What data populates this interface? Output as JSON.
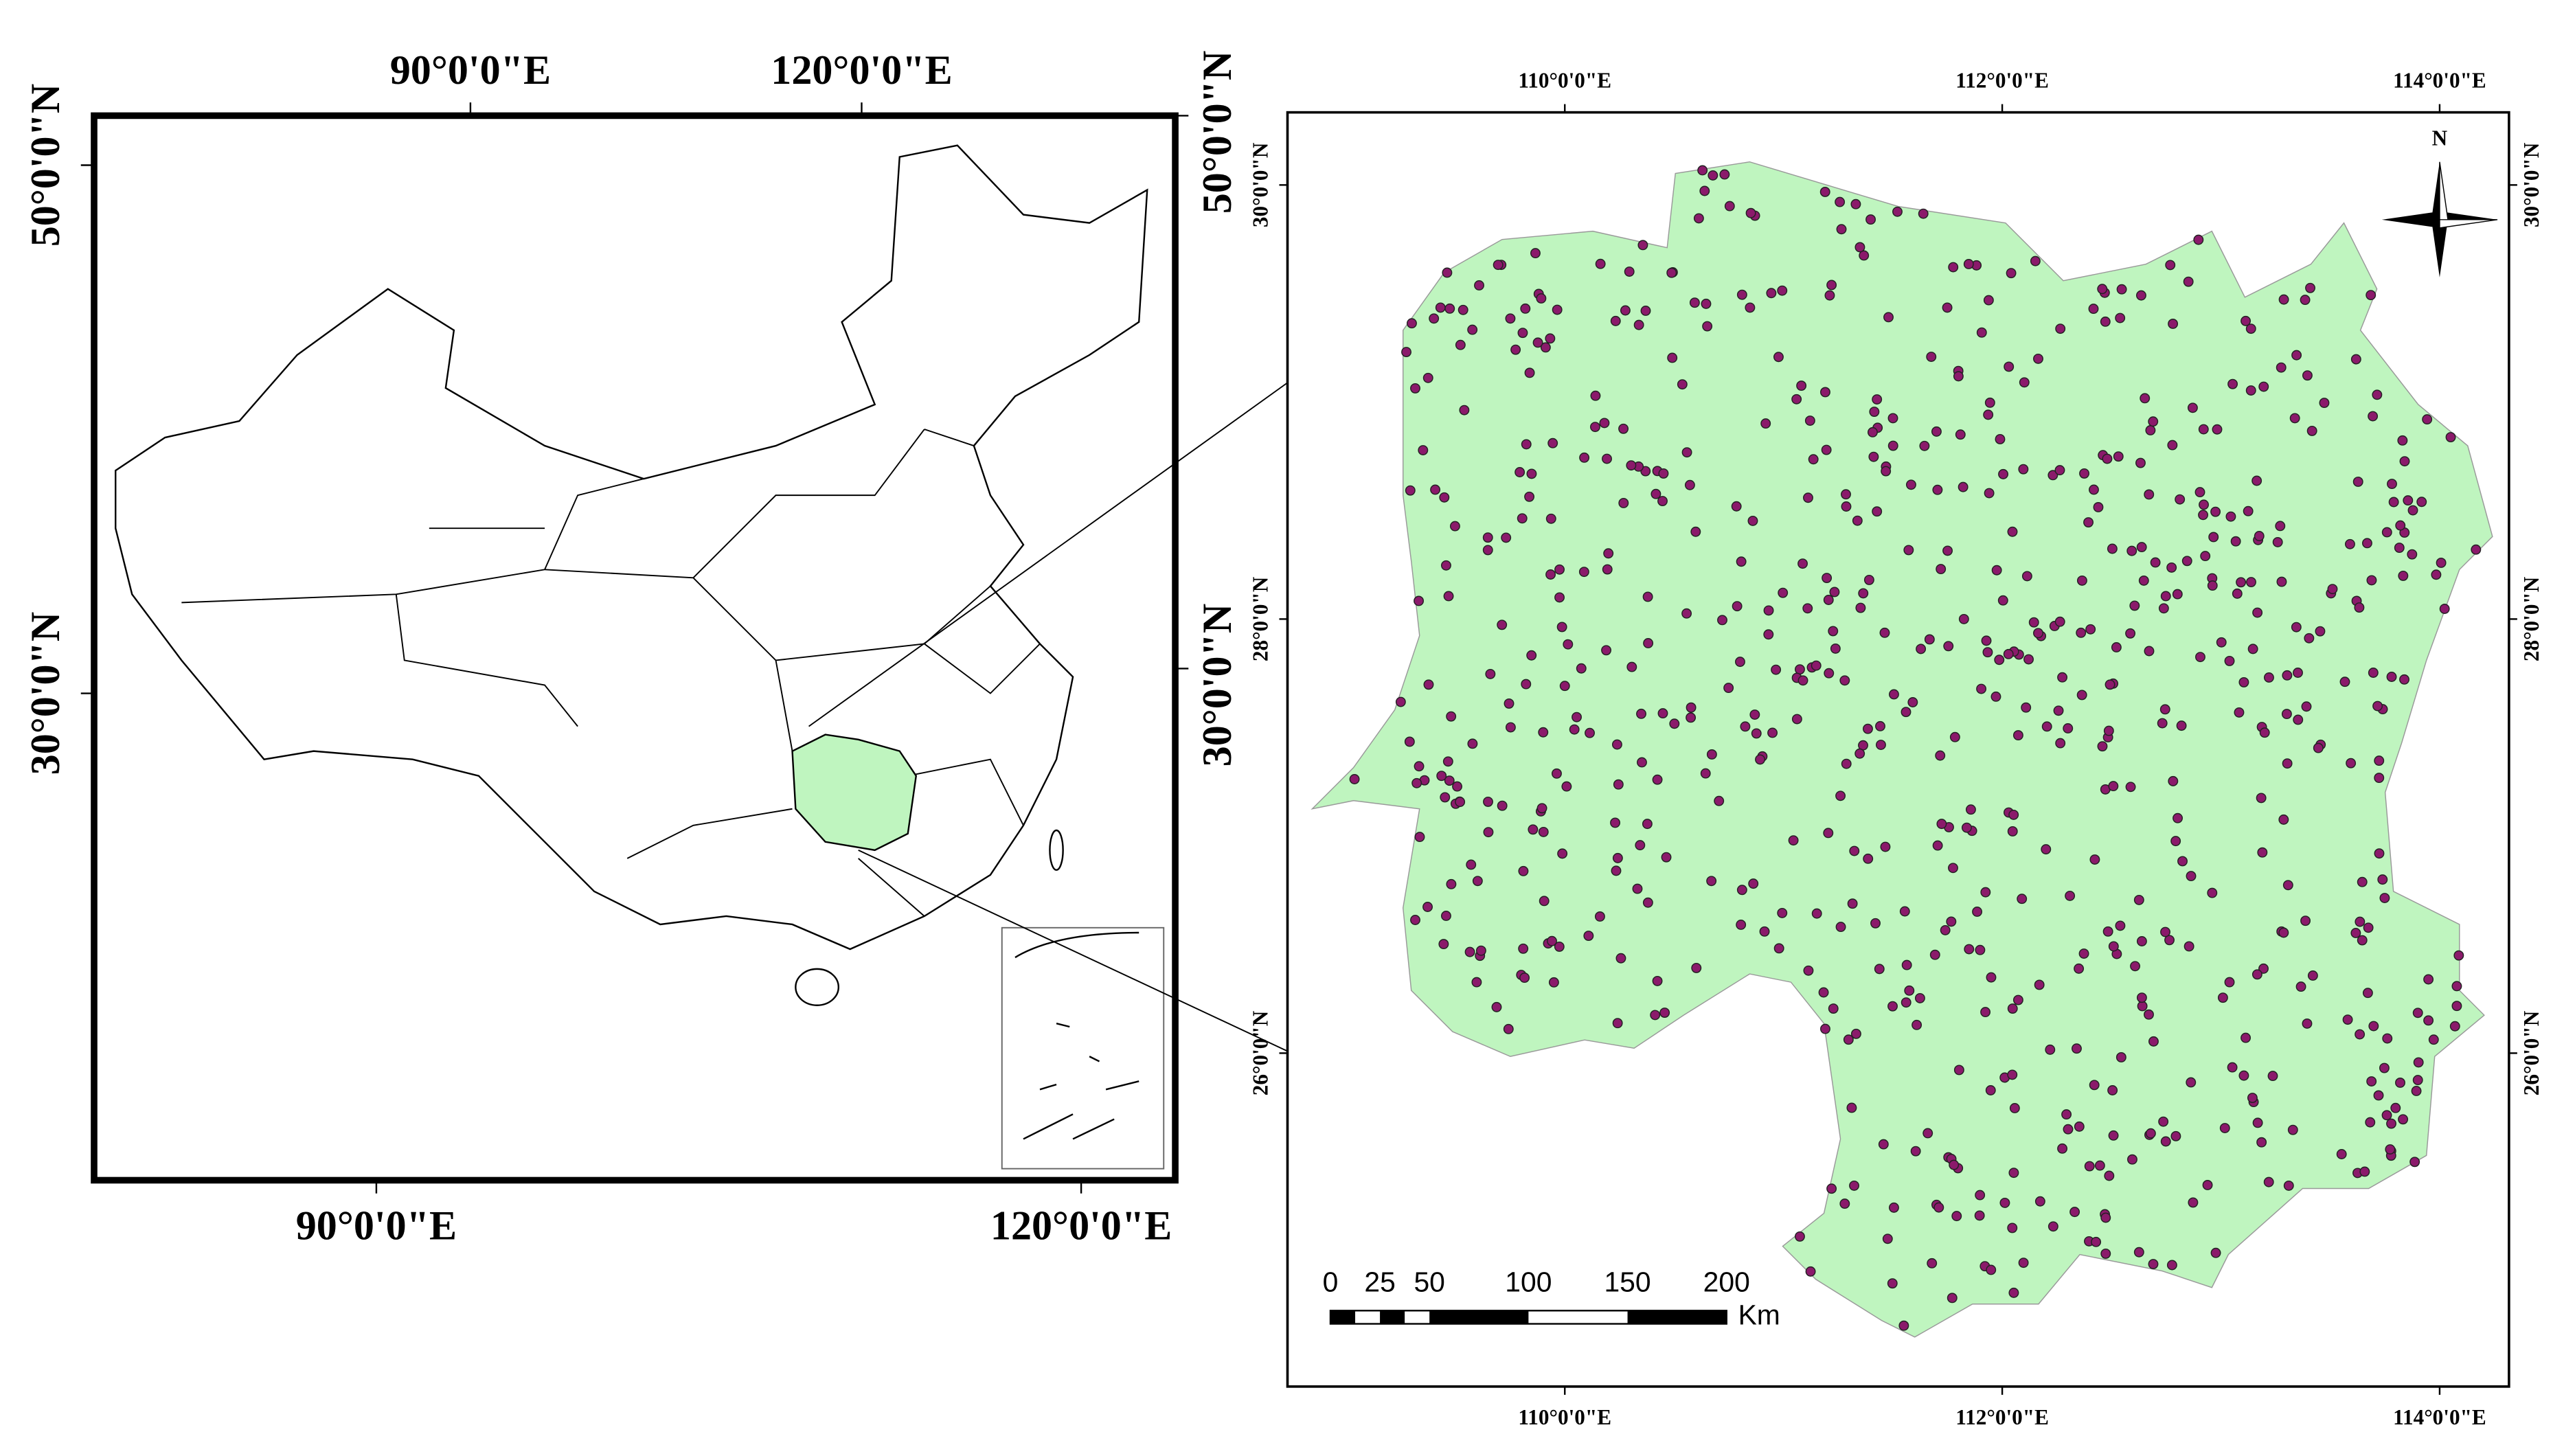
{
  "left_map": {
    "top_labels": [
      "90°0'0\"E",
      "120°0'0\"E"
    ],
    "bottom_labels": [
      "90°0'0\"E",
      "120°0'0\"E"
    ],
    "left_labels": [
      "50°0'0\"N",
      "30°0'0\"N"
    ],
    "right_labels": [
      "50°0'0\"N",
      "30°0'0\"N"
    ]
  },
  "right_map": {
    "top_labels": [
      "110°0'0\"E",
      "112°0'0\"E",
      "114°0'0\"E"
    ],
    "bottom_labels": [
      "110°0'0\"E",
      "112°0'0\"E",
      "114°0'0\"E"
    ],
    "left_labels": [
      "30°0'0\"N",
      "28°0'0\"N",
      "26°0'0\"N"
    ],
    "right_labels": [
      "30°0'0\"N",
      "28°0'0\"N",
      "26°0'0\"N"
    ]
  },
  "scale_bar": {
    "labels": [
      "0",
      "25",
      "50",
      "100",
      "150",
      "200"
    ],
    "unit": "Km"
  },
  "north_arrow": "N"
}
